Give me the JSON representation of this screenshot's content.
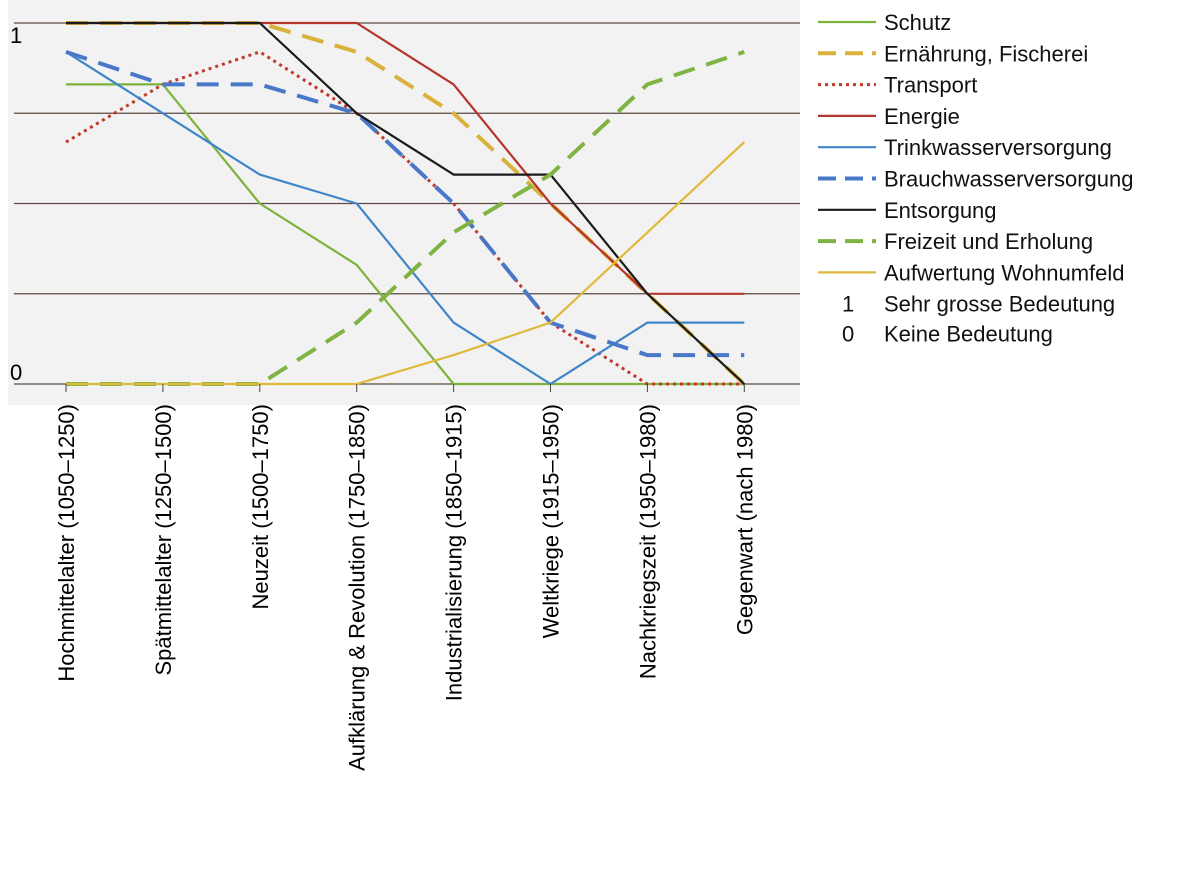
{
  "chart_data": {
    "type": "line",
    "categories": [
      "Hochmittelalter (1050–1250)",
      "Spätmittelalter (1250–1500)",
      "Neuzeit (1500–1750)",
      "Aufklärung & Revolution (1750–1850)",
      "Industrialisierung (1850–1915)",
      "Weltkriege (1915–1950)",
      "Nachkriegszeit (1950–1980)",
      "Gegenwart (nach 1980)"
    ],
    "y_tick_labels": [
      "0",
      "1"
    ],
    "ylim": [
      0,
      1
    ],
    "grid": true,
    "legend_position": "right",
    "series": [
      {
        "name": "Schutz",
        "color": "#7db33a",
        "dash": "solid",
        "values": [
          0.83,
          0.83,
          0.5,
          0.33,
          0,
          0,
          0,
          0
        ]
      },
      {
        "name": "Ernährung, Fischerei",
        "color": "#d9b13b",
        "dash": "dashed",
        "values": [
          1,
          1,
          1,
          0.92,
          0.75,
          0.5,
          0.25,
          0
        ]
      },
      {
        "name": "Transport",
        "color": "#c0392b",
        "dash": "dotted",
        "values": [
          0.67,
          0.83,
          0.92,
          0.75,
          0.5,
          0.17,
          0,
          0
        ]
      },
      {
        "name": "Energie",
        "color": "#b5352c",
        "dash": "solid",
        "values": [
          1,
          1,
          1,
          1,
          0.83,
          0.5,
          0.25,
          0.25
        ]
      },
      {
        "name": "Trinkwasserversorgung",
        "color": "#3f86c9",
        "dash": "solid",
        "values": [
          0.92,
          0.75,
          0.58,
          0.5,
          0.17,
          0,
          0.17,
          0.17
        ]
      },
      {
        "name": "Brauchwasserversorgung",
        "color": "#4a78c8",
        "dash": "dashed",
        "values": [
          0.92,
          0.83,
          0.83,
          0.75,
          0.5,
          0.17,
          0.08,
          0.08
        ]
      },
      {
        "name": "Entsorgung",
        "color": "#1a1a1a",
        "dash": "solid",
        "values": [
          1,
          1,
          1,
          0.75,
          0.58,
          0.58,
          0.25,
          0
        ]
      },
      {
        "name": "Freizeit und Erholung",
        "color": "#7fb342",
        "dash": "dashed",
        "values": [
          0,
          0,
          0,
          0.17,
          0.42,
          0.58,
          0.83,
          0.92
        ]
      },
      {
        "name": "Aufwertung Wohnumfeld",
        "color": "#e0b93a",
        "dash": "solid",
        "values": [
          0,
          0,
          0,
          0,
          0.08,
          0.17,
          0.42,
          0.67
        ]
      }
    ],
    "notes": [
      {
        "symbol": "1",
        "text": "Sehr grosse Bedeutung"
      },
      {
        "symbol": "0",
        "text": "Keine Bedeutung"
      }
    ]
  }
}
